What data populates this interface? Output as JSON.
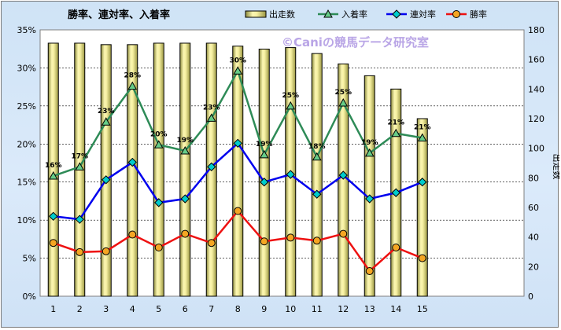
{
  "chart_data": {
    "type": "bar",
    "title": "勝率、連対率、入着率",
    "watermark": "©Caniの競馬データ研究室",
    "categories": [
      "1",
      "2",
      "3",
      "4",
      "5",
      "6",
      "7",
      "8",
      "9",
      "10",
      "11",
      "12",
      "13",
      "14",
      "15"
    ],
    "y_left": {
      "ylim": [
        0,
        35
      ],
      "ticks": [
        "0%",
        "5%",
        "10%",
        "15%",
        "20%",
        "25%",
        "30%",
        "35%"
      ]
    },
    "y_right": {
      "ylim": [
        0,
        180
      ],
      "ticks": [
        "0",
        "20",
        "40",
        "60",
        "80",
        "100",
        "120",
        "140",
        "160",
        "180"
      ],
      "label": "出走数"
    },
    "legend_position": "top",
    "grid": true,
    "series": [
      {
        "name": "出走数",
        "kind": "bar",
        "axis": "right",
        "color": "#f5f0a0",
        "values": [
          171,
          171,
          170,
          170,
          171,
          171,
          171,
          169,
          167,
          168,
          164,
          157,
          149,
          140,
          120
        ]
      },
      {
        "name": "入着率",
        "kind": "line",
        "axis": "left",
        "color": "#2e8b57",
        "marker": "triangle",
        "values": [
          15.8,
          17.0,
          22.9,
          27.6,
          19.9,
          19.1,
          23.4,
          29.6,
          18.6,
          25.0,
          18.3,
          25.4,
          18.8,
          21.4,
          20.8
        ],
        "labels": [
          "16%",
          "17%",
          "23%",
          "28%",
          "20%",
          "19%",
          "23%",
          "30%",
          "19%",
          "25%",
          "18%",
          "25%",
          "19%",
          "21%",
          "21%"
        ]
      },
      {
        "name": "連対率",
        "kind": "line",
        "axis": "left",
        "color": "#0000ee",
        "marker": "diamond",
        "values": [
          10.5,
          10.1,
          15.3,
          17.6,
          12.3,
          12.8,
          17.0,
          20.1,
          15.0,
          16.0,
          13.4,
          15.9,
          12.8,
          13.6,
          15.0
        ]
      },
      {
        "name": "勝率",
        "kind": "line",
        "axis": "left",
        "color": "#ee1111",
        "marker": "circle",
        "values": [
          7.0,
          5.8,
          5.9,
          8.1,
          6.4,
          8.2,
          7.0,
          11.2,
          7.2,
          7.7,
          7.3,
          8.2,
          3.3,
          6.4,
          5.0
        ]
      }
    ]
  }
}
